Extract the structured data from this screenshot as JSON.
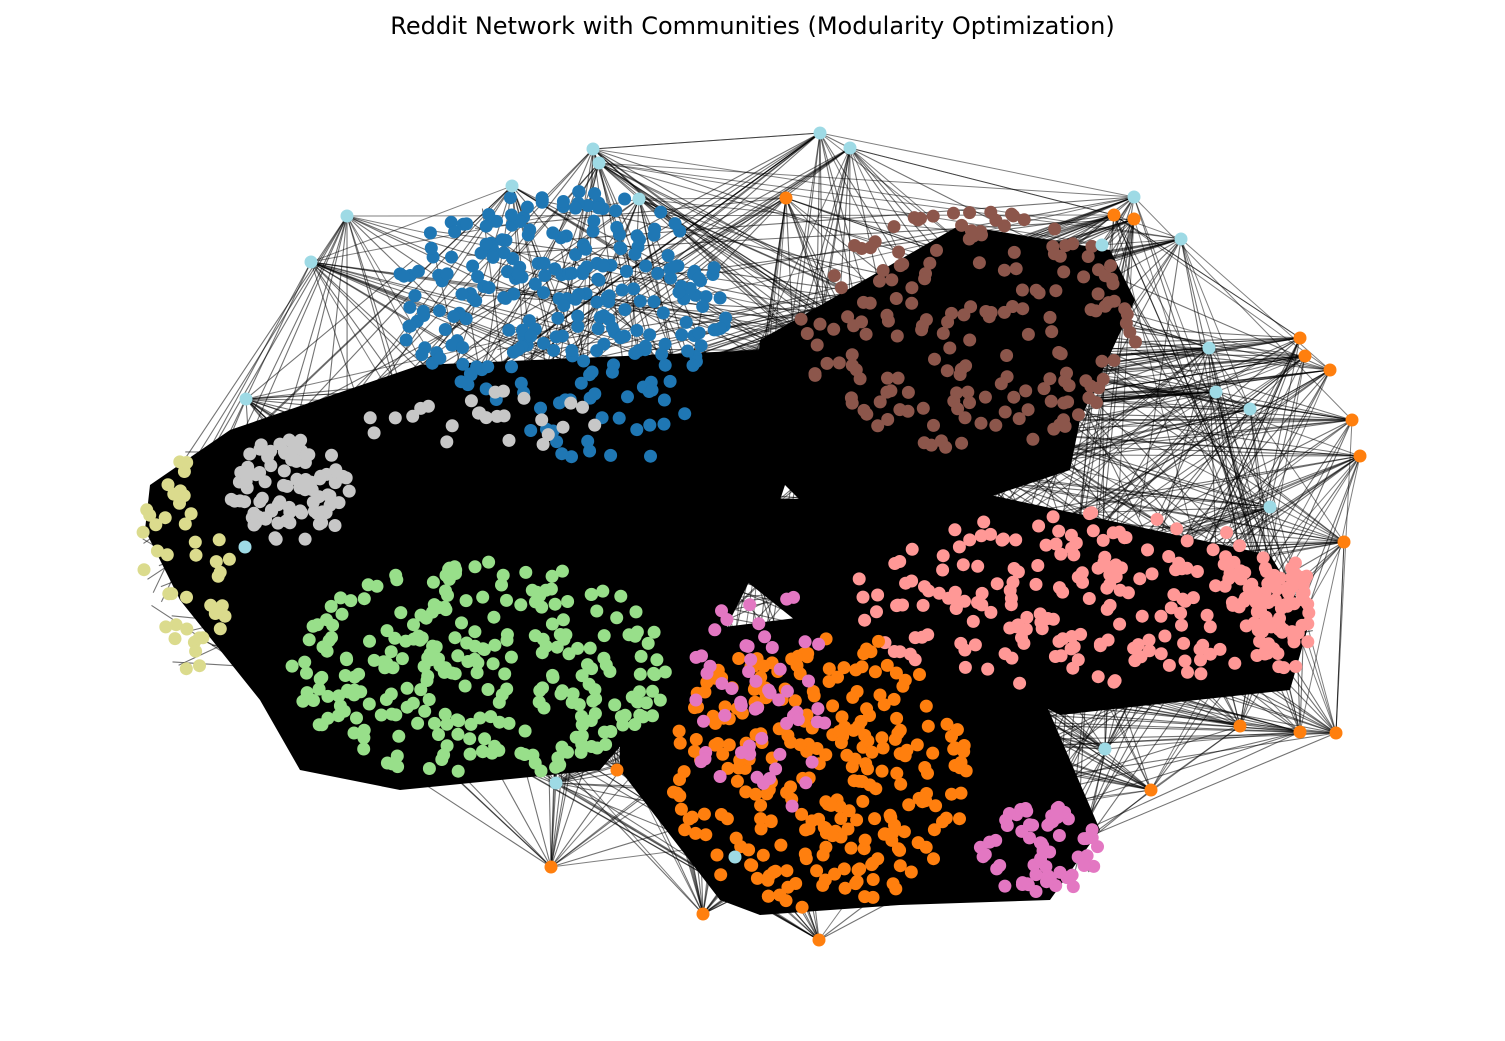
{
  "title": "Reddit Network with Communities (Modularity Optimization)",
  "colors": {
    "edge": "#000000",
    "community_blue": "#1f77b4",
    "community_brown": "#8c564b",
    "community_pink": "#ff9896",
    "community_orange": "#ff7f0e",
    "community_magenta": "#e377c2",
    "community_green": "#98df8a",
    "community_gray": "#c7c7c7",
    "community_olive": "#dbdb8d",
    "community_lightblue": "#9edae5"
  },
  "communities": [
    {
      "name": "blue",
      "color": "#1f77b4"
    },
    {
      "name": "brown",
      "color": "#8c564b"
    },
    {
      "name": "pink",
      "color": "#ff9896"
    },
    {
      "name": "orange",
      "color": "#ff7f0e"
    },
    {
      "name": "magenta",
      "color": "#e377c2"
    },
    {
      "name": "green",
      "color": "#98df8a"
    },
    {
      "name": "gray",
      "color": "#c7c7c7"
    },
    {
      "name": "olive",
      "color": "#dbdb8d"
    },
    {
      "name": "lightblue",
      "color": "#9edae5"
    }
  ]
}
